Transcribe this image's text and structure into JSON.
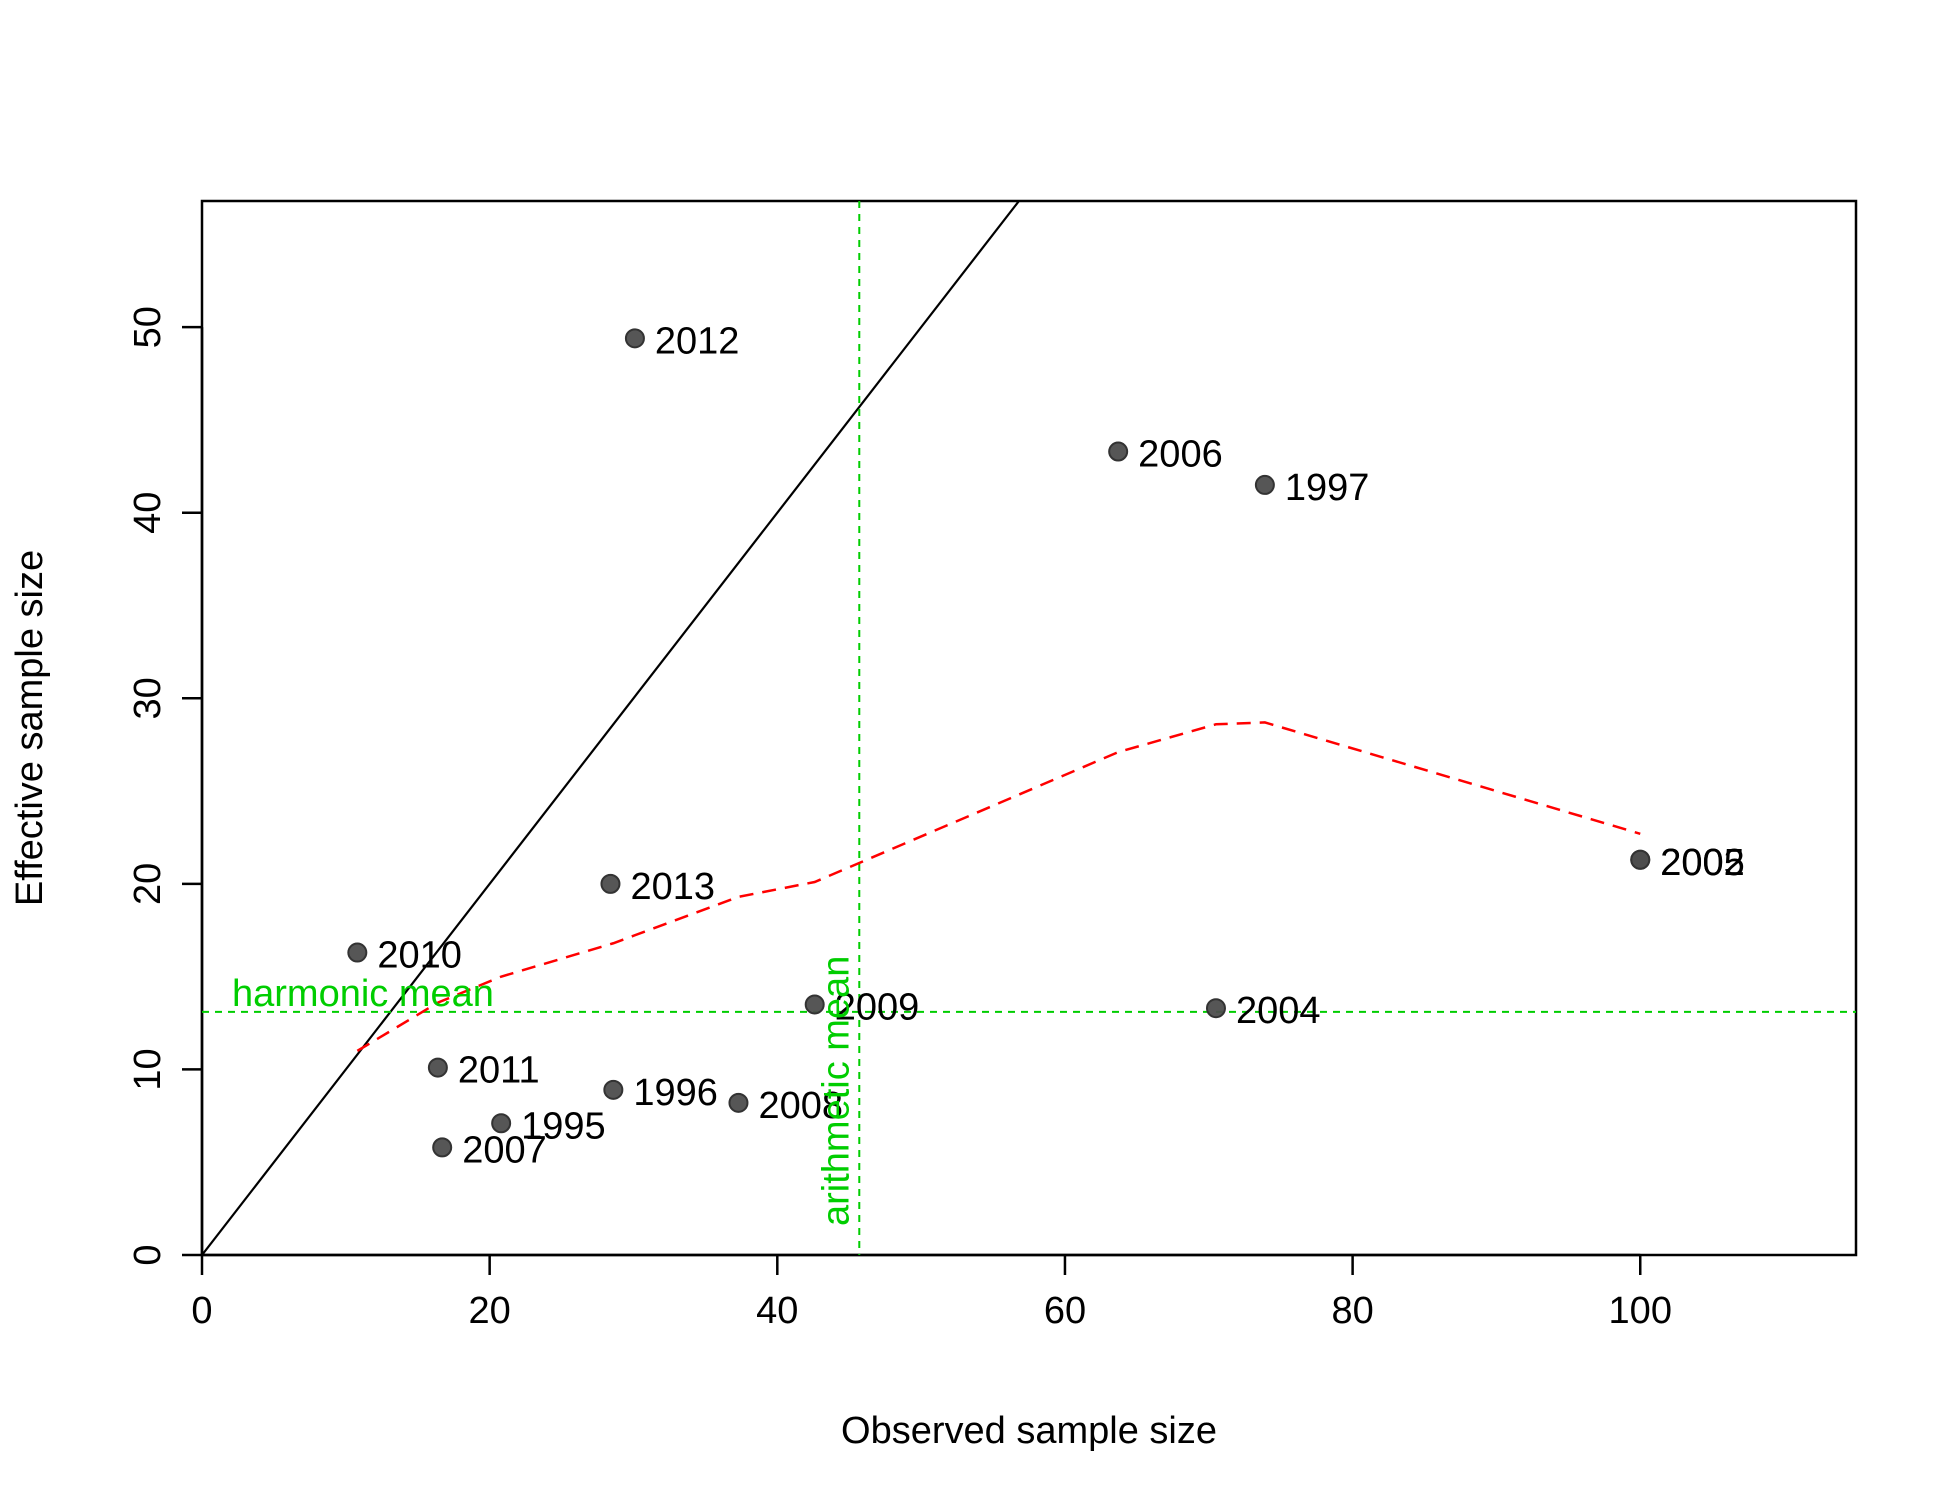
{
  "chart_data": {
    "type": "scatter",
    "title": "",
    "xlabel": "Observed sample size",
    "ylabel": "Effective sample size",
    "xlim": [
      0,
      115
    ],
    "ylim": [
      0,
      56.8
    ],
    "x_ticks": [
      0,
      20,
      40,
      60,
      80,
      100
    ],
    "y_ticks": [
      0,
      10,
      20,
      30,
      40,
      50
    ],
    "grid": false,
    "legend": "none",
    "points": [
      {
        "label": "1995",
        "x": 20.8,
        "y": 7.1
      },
      {
        "label": "1996",
        "x": 28.6,
        "y": 8.9
      },
      {
        "label": "1997",
        "x": 73.9,
        "y": 41.5
      },
      {
        "label": "2002",
        "x": 100,
        "y": 21.3
      },
      {
        "label": "2004",
        "x": 70.5,
        "y": 13.3
      },
      {
        "label": "2005",
        "x": 100,
        "y": 21.3
      },
      {
        "label": "2006",
        "x": 63.7,
        "y": 43.3
      },
      {
        "label": "2007",
        "x": 16.7,
        "y": 5.8
      },
      {
        "label": "2008",
        "x": 37.3,
        "y": 8.2
      },
      {
        "label": "2009",
        "x": 42.6,
        "y": 13.5
      },
      {
        "label": "2010",
        "x": 10.8,
        "y": 16.3
      },
      {
        "label": "2011",
        "x": 16.4,
        "y": 10.1
      },
      {
        "label": "2012",
        "x": 30.1,
        "y": 49.4
      },
      {
        "label": "2013",
        "x": 28.4,
        "y": 20.0
      }
    ],
    "identity_line": {
      "slope": 1,
      "intercept": 0
    },
    "smoother": {
      "style": "dashed",
      "x": [
        10.8,
        16.4,
        20.8,
        28.6,
        37.3,
        42.6,
        63.7,
        70.5,
        73.9,
        100
      ],
      "y": [
        11.0,
        13.6,
        15.0,
        16.8,
        19.3,
        20.1,
        27.1,
        28.6,
        28.7,
        22.7
      ]
    },
    "reference_lines": [
      {
        "orientation": "vertical",
        "value": 45.7,
        "label": "arithmetic mean"
      },
      {
        "orientation": "horizontal",
        "value": 13.1,
        "label": "harmonic mean"
      }
    ],
    "colors": {
      "points": "#4d4d4d",
      "axes": "#000000",
      "identity_line": "#000000",
      "smoother": "#ff0000",
      "reference": "#00cd00"
    }
  }
}
